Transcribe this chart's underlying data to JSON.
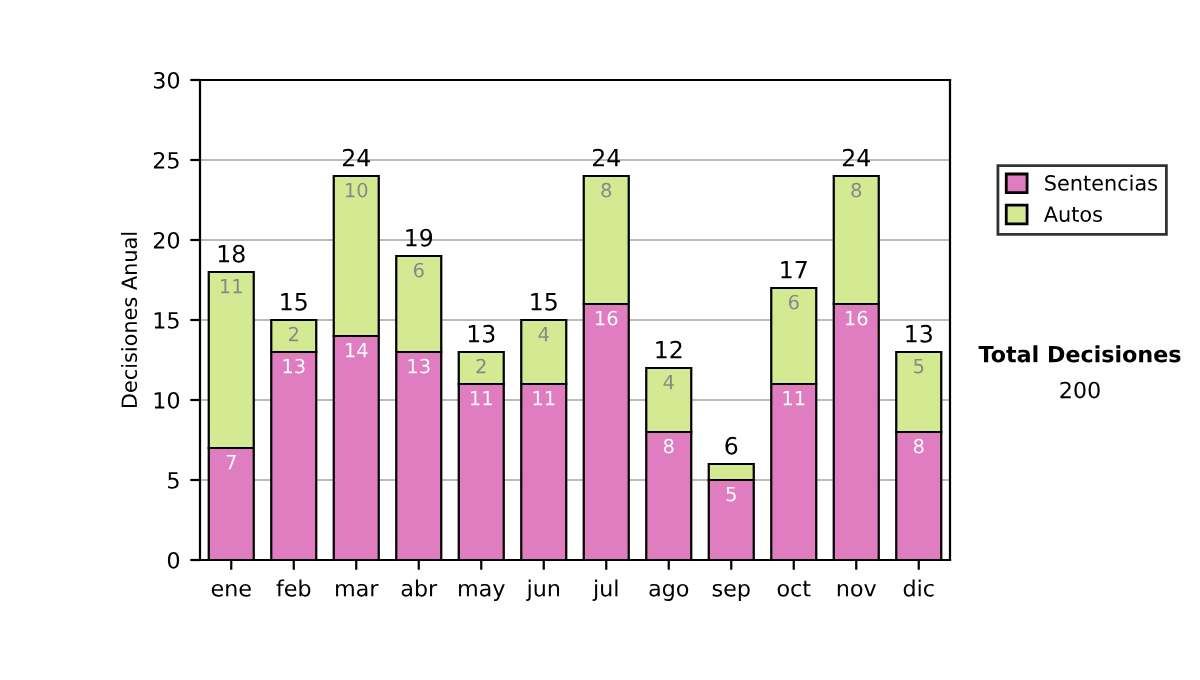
{
  "chart_data": {
    "type": "bar",
    "stacked": true,
    "ylabel": "Decisiones Anual",
    "categories": [
      "ene",
      "feb",
      "mar",
      "abr",
      "may",
      "jun",
      "jul",
      "ago",
      "sep",
      "oct",
      "nov",
      "dic"
    ],
    "series": [
      {
        "name": "Sentencias",
        "color": "#e07cc0",
        "values": [
          7,
          13,
          14,
          13,
          11,
          11,
          16,
          8,
          5,
          11,
          16,
          8
        ],
        "value_labels": [
          "7",
          "13",
          "14",
          "13",
          "11",
          "11",
          "16",
          "8",
          "5",
          "11",
          "16",
          "8"
        ]
      },
      {
        "name": "Autos",
        "color": "#d4ea92",
        "values": [
          11,
          2,
          10,
          6,
          2,
          4,
          8,
          4,
          1,
          6,
          8,
          5
        ],
        "value_labels": [
          "11",
          "2",
          "10",
          "6",
          "2",
          "4",
          "8",
          "4",
          null,
          "6",
          "8",
          "5"
        ]
      }
    ],
    "totals": [
      "18",
      "15",
      "24",
      "19",
      "13",
      "15",
      "24",
      "12",
      "6",
      "17",
      "24",
      "13"
    ],
    "ylim": [
      0,
      30
    ],
    "yticks": [
      0,
      5,
      10,
      15,
      20,
      25,
      30
    ],
    "grid": "y",
    "legend": "right",
    "annotations": [
      "Total Decisiones",
      "200"
    ]
  }
}
